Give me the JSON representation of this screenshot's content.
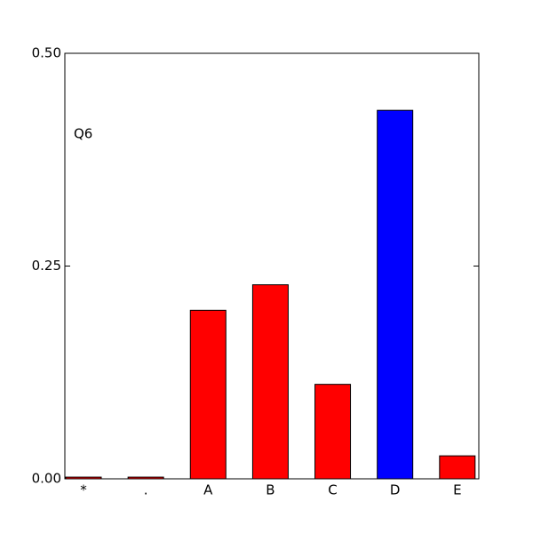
{
  "chart_data": {
    "type": "bar",
    "annotation": "Q6",
    "categories": [
      "*",
      ".",
      "A",
      "B",
      "C",
      "D",
      "E"
    ],
    "values": [
      0.002,
      0.002,
      0.198,
      0.228,
      0.111,
      0.433,
      0.027
    ],
    "colors": [
      "#ff0000",
      "#ff0000",
      "#ff0000",
      "#ff0000",
      "#ff0000",
      "#0000ff",
      "#ff0000"
    ],
    "ylim": [
      0,
      0.5
    ],
    "yticks": [
      {
        "value": 0,
        "label": "0.00"
      },
      {
        "value": 0.25,
        "label": "0.25"
      },
      {
        "value": 0.5,
        "label": "0.50"
      }
    ]
  }
}
